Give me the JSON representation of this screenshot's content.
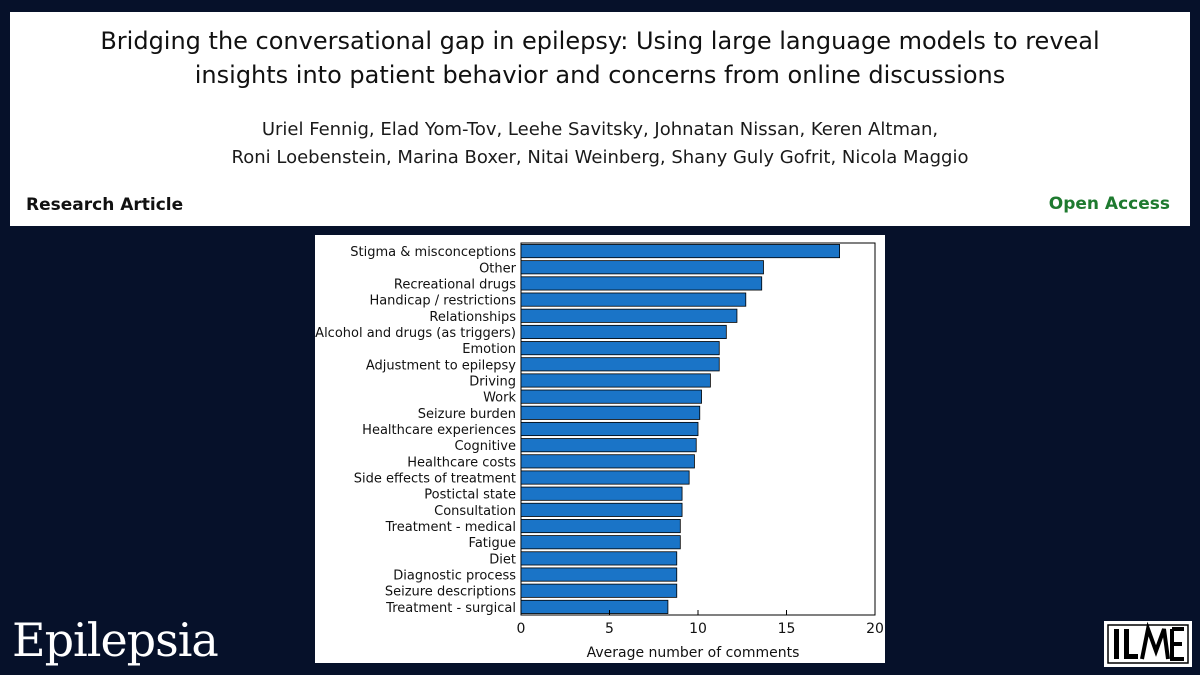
{
  "header": {
    "title_line1": "Bridging the conversational gap in epilepsy: Using large language models to reveal",
    "title_line2": "insights into patient behavior and concerns from online discussions",
    "authors_line1": "Uriel Fennig, Elad Yom-Tov, Leehe Savitsky, Johnatan Nissan, Keren Altman,",
    "authors_line2": "Roni Loebenstein, Marina Boxer, Nitai Weinberg, Shany Guly Gofrit, Nicola Maggio",
    "article_type": "Research Article",
    "access": "Open Access"
  },
  "footer": {
    "journal": "Epilepsia",
    "society_logo_text": "ILAE"
  },
  "colors": {
    "background": "#06112a",
    "bar_fill": "#1a74c7",
    "bar_stroke": "#000000",
    "open_access": "#1e7a2f"
  },
  "chart_data": {
    "type": "bar",
    "orientation": "horizontal",
    "categories": [
      "Stigma & misconceptions",
      "Other",
      "Recreational drugs",
      "Handicap / restrictions",
      "Relationships",
      "Alcohol and drugs (as triggers)",
      "Emotion",
      "Adjustment to epilepsy",
      "Driving",
      "Work",
      "Seizure burden",
      "Healthcare experiences",
      "Cognitive",
      "Healthcare costs",
      "Side effects of treatment",
      "Postictal state",
      "Consultation",
      "Treatment - medical",
      "Fatigue",
      "Diet",
      "Diagnostic process",
      "Seizure descriptions",
      "Treatment - surgical"
    ],
    "values": [
      18.0,
      13.7,
      13.6,
      12.7,
      12.2,
      11.6,
      11.2,
      11.2,
      10.7,
      10.2,
      10.1,
      10.0,
      9.9,
      9.8,
      9.5,
      9.1,
      9.1,
      9.0,
      9.0,
      8.8,
      8.8,
      8.8,
      8.3
    ],
    "xlabel": "Average number of comments",
    "ylabel": "",
    "xlim": [
      0,
      20
    ],
    "xticks": [
      0,
      5,
      10,
      15,
      20
    ],
    "grid": false
  }
}
